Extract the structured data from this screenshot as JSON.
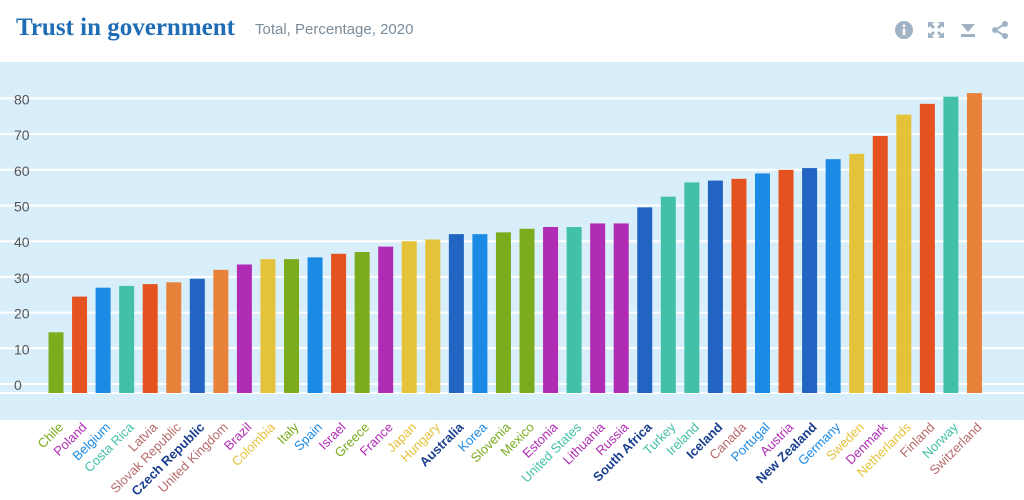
{
  "header": {
    "title": "Trust in government",
    "subtitle": "Total, Percentage, 2020",
    "icons": [
      "info-icon",
      "fullscreen-icon",
      "download-icon",
      "share-icon"
    ]
  },
  "chart_data": {
    "type": "bar",
    "ylim": [
      0,
      85
    ],
    "yticks": [
      0,
      10,
      20,
      30,
      40,
      50,
      60,
      70,
      80
    ],
    "grid": true,
    "colors": {
      "plot_background": "#d9eefb",
      "grid": "#ffffff",
      "axis_text": "#555555"
    },
    "categories": [
      "Chile",
      "Poland",
      "Belgium",
      "Costa Rica",
      "Latvia",
      "Slovak Republic",
      "Czech Republic",
      "United Kingdom",
      "Brazil",
      "Colombia",
      "Italy",
      "Spain",
      "Israel",
      "Greece",
      "France",
      "Japan",
      "Hungary",
      "Australia",
      "Korea",
      "Slovenia",
      "Mexico",
      "Estonia",
      "United States",
      "Lithuania",
      "Russia",
      "South Africa",
      "Turkey",
      "Ireland",
      "Iceland",
      "Canada",
      "Portugal",
      "Austria",
      "New Zealand",
      "Germany",
      "Sweden",
      "Denmark",
      "Netherlands",
      "Finland",
      "Norway",
      "Switzerland"
    ],
    "values": [
      17,
      27,
      29.5,
      30,
      30.5,
      31,
      32,
      34.5,
      36,
      37.5,
      37.5,
      38,
      39,
      39.5,
      41,
      42.5,
      43,
      44.5,
      44.5,
      45,
      46,
      46.5,
      46.5,
      47.5,
      47.5,
      52,
      55,
      59,
      59.5,
      60,
      61.5,
      62.5,
      63,
      65.5,
      67,
      72,
      78,
      81,
      83,
      84
    ],
    "bar_colors": [
      "#7aac1e",
      "#e4521f",
      "#1a8ae4",
      "#42c1a8",
      "#e4521f",
      "#e8823a",
      "#2164c2",
      "#e8823a",
      "#b02cb4",
      "#e4c23a",
      "#7aac1e",
      "#1a8ae4",
      "#e4521f",
      "#7aac1e",
      "#b02cb4",
      "#e4c23a",
      "#e4c23a",
      "#2164c2",
      "#1a8ae4",
      "#7aac1e",
      "#7aac1e",
      "#b02cb4",
      "#42c1a8",
      "#b02cb4",
      "#b02cb4",
      "#2164c2",
      "#42c1a8",
      "#42c1a8",
      "#2164c2",
      "#e4521f",
      "#1a8ae4",
      "#e4521f",
      "#2164c2",
      "#1a8ae4",
      "#e4c23a",
      "#e4521f",
      "#e4c23a",
      "#e4521f",
      "#42c1a8",
      "#e8823a"
    ],
    "label_colors": [
      "#7aac1e",
      "#b02cb4",
      "#1a8ae4",
      "#42c1a8",
      "#b86a6a",
      "#b86a6a",
      "#1a3f8e",
      "#b86a6a",
      "#b02cb4",
      "#e4c23a",
      "#7aac1e",
      "#1a8ae4",
      "#b02cb4",
      "#7aac1e",
      "#b02cb4",
      "#e4c23a",
      "#e4c23a",
      "#1a3f8e",
      "#1a8ae4",
      "#7aac1e",
      "#7aac1e",
      "#b02cb4",
      "#42c1a8",
      "#b02cb4",
      "#b02cb4",
      "#1a3f8e",
      "#42c1a8",
      "#42c1a8",
      "#1a3f8e",
      "#b86a6a",
      "#1a8ae4",
      "#b02cb4",
      "#1a3f8e",
      "#1a8ae4",
      "#e4c23a",
      "#b02cb4",
      "#e4c23a",
      "#b86a6a",
      "#42c1a8",
      "#b86a6a"
    ],
    "label_bold": [
      false,
      false,
      false,
      false,
      false,
      false,
      true,
      false,
      false,
      false,
      false,
      false,
      false,
      false,
      false,
      false,
      false,
      true,
      false,
      false,
      false,
      false,
      false,
      false,
      false,
      true,
      false,
      false,
      true,
      false,
      false,
      false,
      true,
      false,
      false,
      false,
      false,
      false,
      false,
      false
    ]
  }
}
